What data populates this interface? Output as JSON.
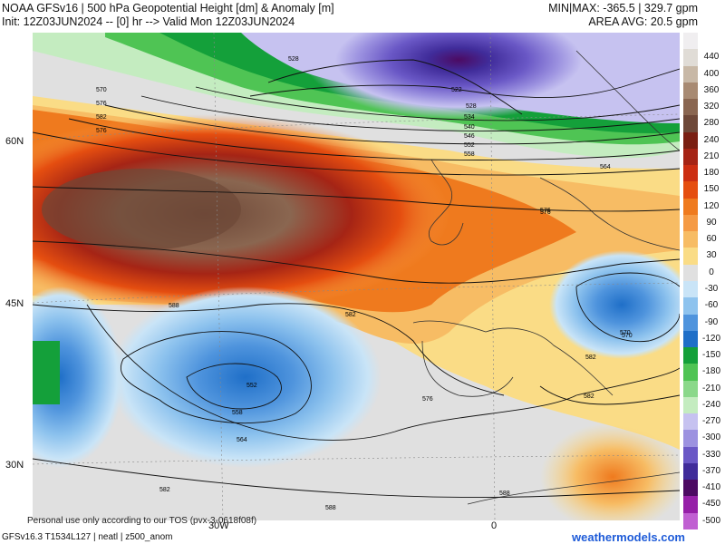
{
  "header": {
    "title": "NOAA GFSv16 | 500 hPa Geopotential Height [dm] & Anomaly [m]",
    "init": "Init: 12Z03JUN2024 -- [0] hr --> Valid Mon 12Z03JUN2024",
    "minmax": "MIN|MAX: -365.5 | 329.7 gpm",
    "area_avg": "AREA AVG: 20.5 gpm"
  },
  "map": {
    "latitudes": [
      "60N",
      "45N",
      "30N"
    ],
    "longitudes": [
      "30W",
      "0"
    ],
    "contour_labels": [
      "528",
      "522",
      "528",
      "534",
      "540",
      "546",
      "552",
      "558",
      "564",
      "570",
      "576",
      "582",
      "588",
      "552",
      "558",
      "564",
      "576",
      "582",
      "570",
      "576",
      "582",
      "576",
      "582",
      "588",
      "588",
      "582",
      "570",
      "576"
    ]
  },
  "colorbar": {
    "levels": [
      "",
      "440",
      "400",
      "360",
      "320",
      "280",
      "240",
      "210",
      "180",
      "150",
      "120",
      "90",
      "60",
      "30",
      "0",
      "-30",
      "-60",
      "-90",
      "-120",
      "-150",
      "-180",
      "-210",
      "-240",
      "-270",
      "-300",
      "-330",
      "-370",
      "-410",
      "-450",
      "-500"
    ],
    "colors": [
      "#f0eef0",
      "#e0dcd6",
      "#c8b8a6",
      "#a88a72",
      "#8a6650",
      "#6e4838",
      "#7a1f12",
      "#a52415",
      "#cc2e12",
      "#e54e10",
      "#ef7a1e",
      "#f59a44",
      "#f7bc64",
      "#fadc86",
      "#e0e0e0",
      "#c9e4f7",
      "#8ec3ee",
      "#4f94dd",
      "#1f6fc8",
      "#14a03a",
      "#4fc454",
      "#8ad88a",
      "#c4ecc0",
      "#c6c2f0",
      "#9c92e0",
      "#6a58c6",
      "#402c9a",
      "#4c0a62",
      "#9620a8",
      "#c060d2"
    ]
  },
  "footer": {
    "disclaimer": "Personal use only according to our TOS (pvx-3-0618f08f)",
    "model_info": "GFSv16.3 T1534L127 | neatl | z500_anom",
    "brand": "weathermodels.com"
  }
}
